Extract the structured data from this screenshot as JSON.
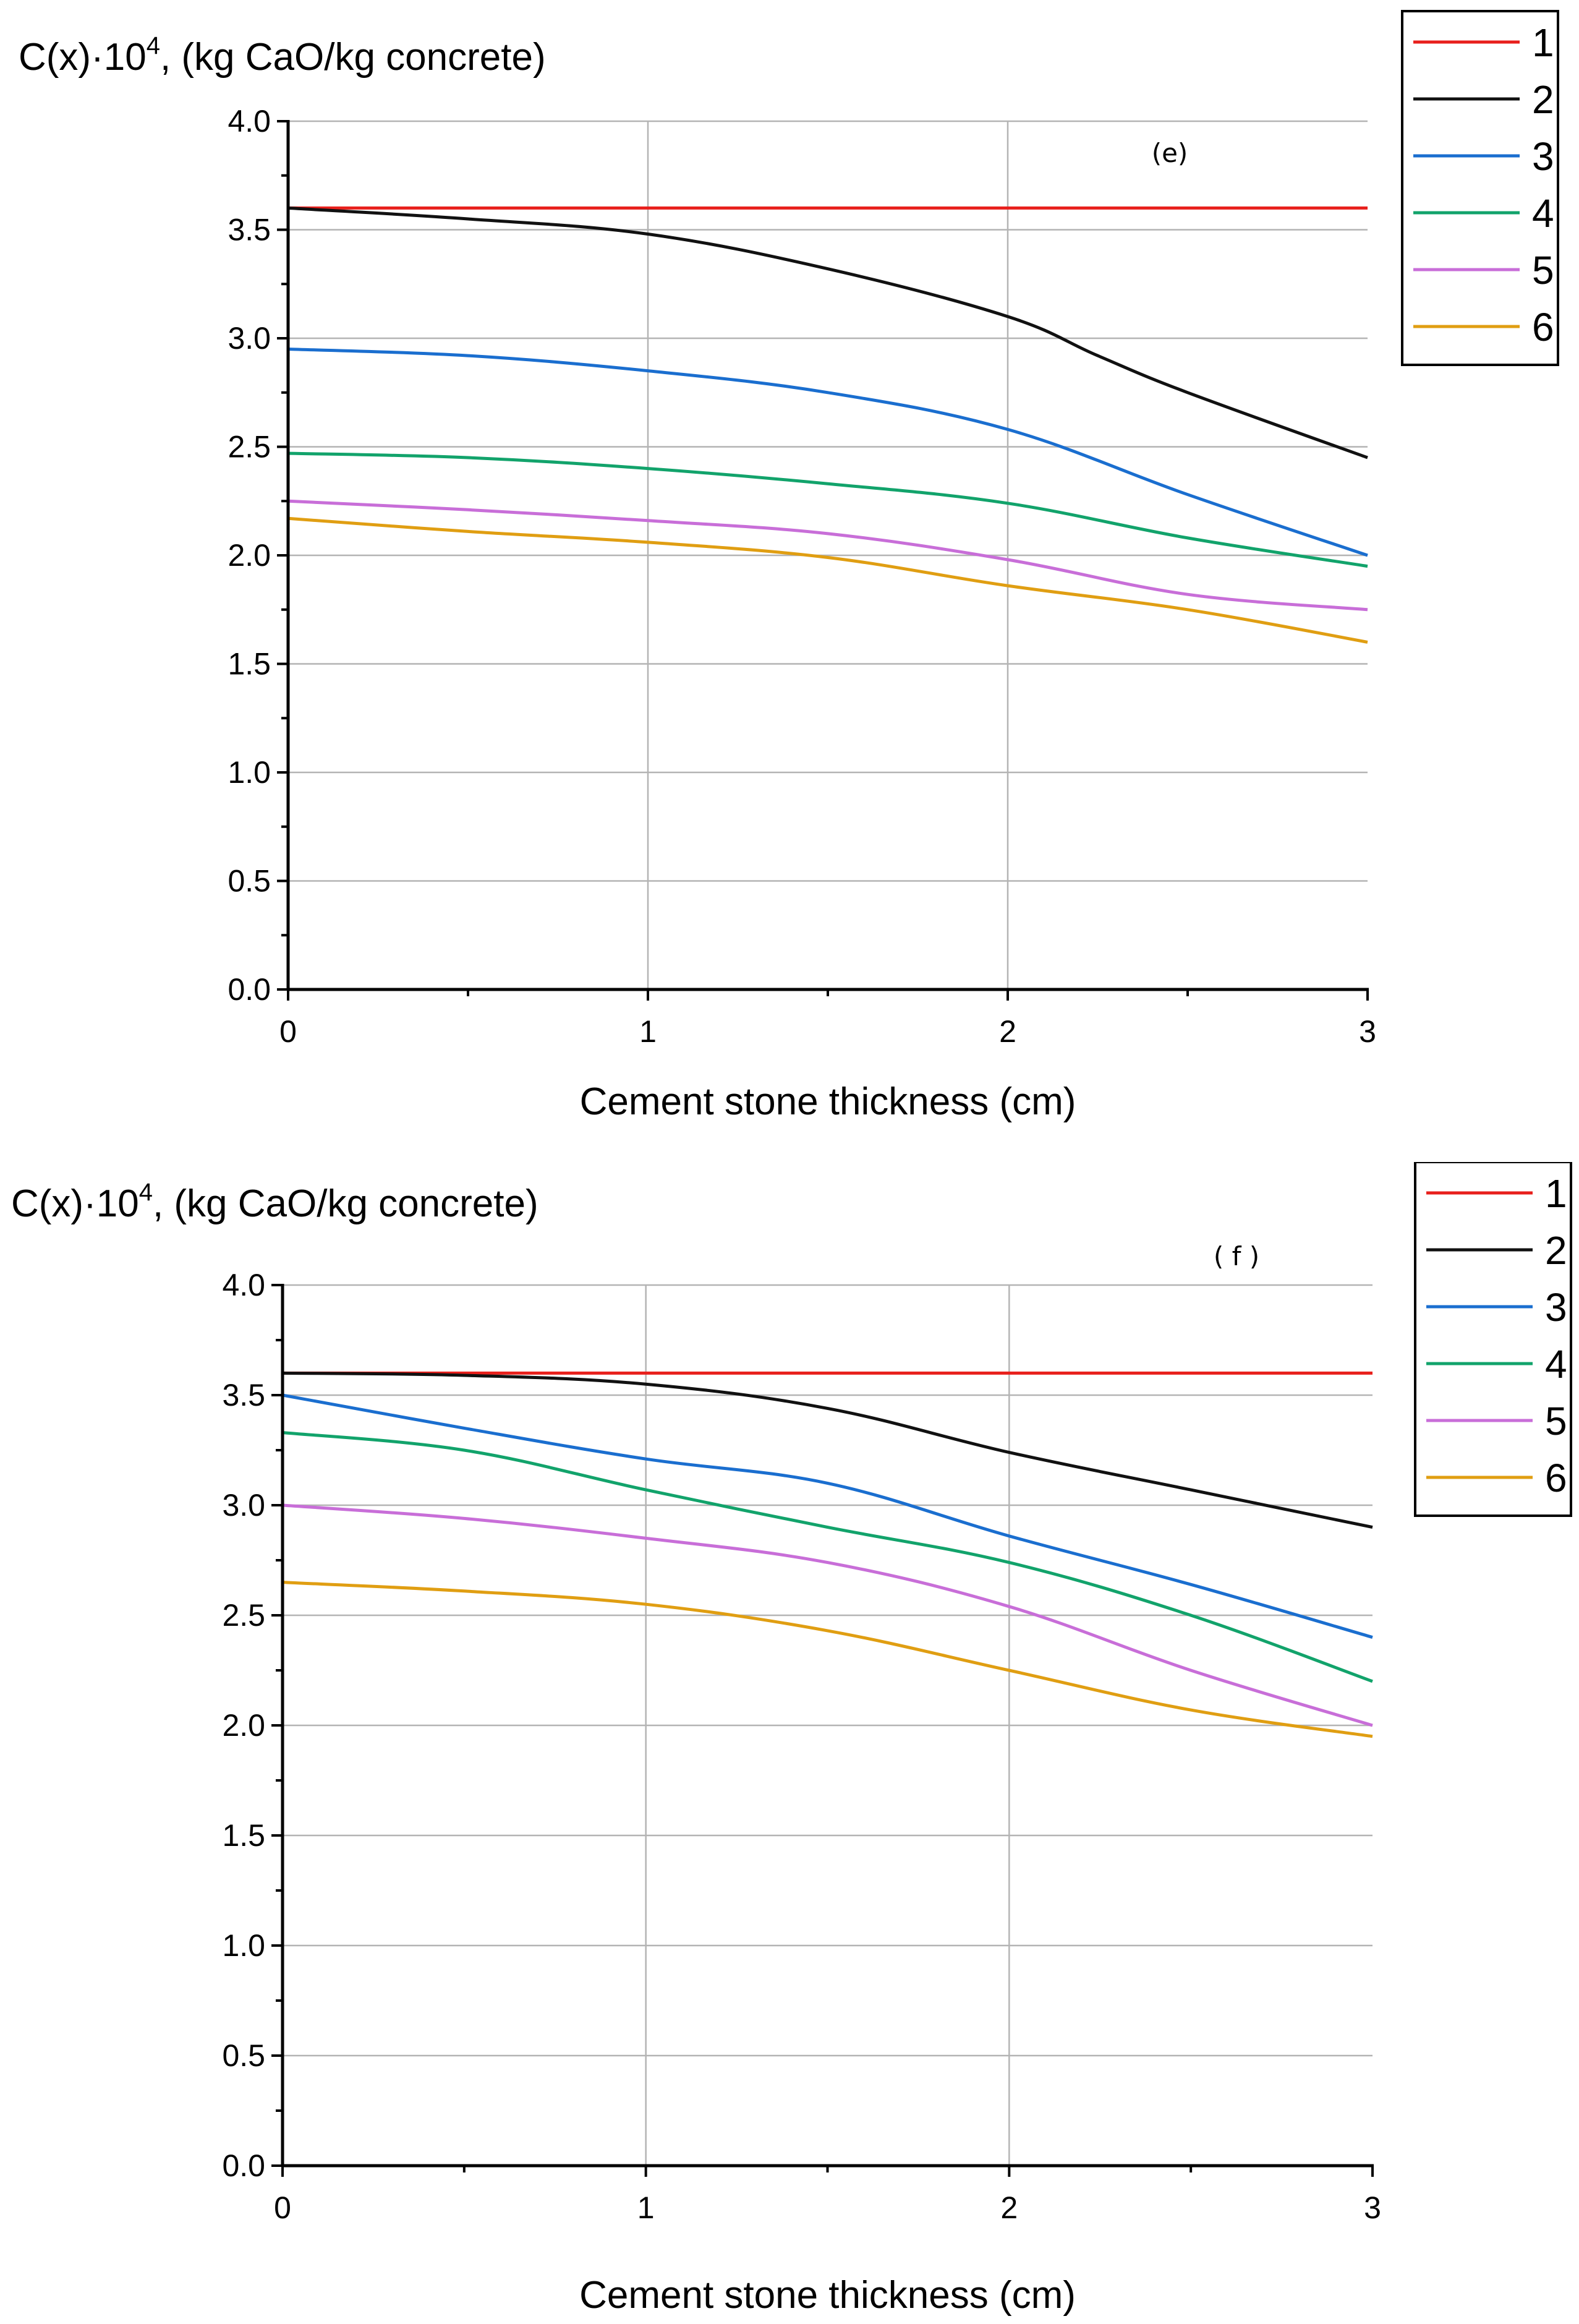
{
  "chart_data": [
    {
      "type": "line",
      "panel_label": "(e)",
      "ylabel": "C(x)·10",
      "ylabel_exp": "4",
      "ylabel_suffix": ", (kg CaO/kg concrete)",
      "xlabel": "Cement stone thickness (cm)",
      "xlim": [
        0,
        3
      ],
      "ylim": [
        0,
        4.0
      ],
      "xticks": [
        "0",
        "1",
        "2",
        "3"
      ],
      "yticks": [
        "0.0",
        "0.5",
        "1.0",
        "1.5",
        "2.0",
        "2.5",
        "3.0",
        "3.5",
        "4.0"
      ],
      "grid": true,
      "legend_position": "top-right",
      "series": [
        {
          "name": "1",
          "color": "#e8201c",
          "x": [
            0,
            0.5,
            1,
            1.5,
            2,
            2.5,
            3
          ],
          "y": [
            3.6,
            3.6,
            3.6,
            3.6,
            3.6,
            3.6,
            3.6
          ]
        },
        {
          "name": "2",
          "color": "#111111",
          "x": [
            0,
            0.5,
            1,
            1.5,
            2,
            2.25,
            2.5,
            3
          ],
          "y": [
            3.6,
            3.55,
            3.48,
            3.32,
            3.1,
            2.92,
            2.75,
            2.45
          ]
        },
        {
          "name": "3",
          "color": "#1a6ecf",
          "x": [
            0,
            0.5,
            1,
            1.5,
            2,
            2.5,
            3
          ],
          "y": [
            2.95,
            2.92,
            2.85,
            2.75,
            2.58,
            2.28,
            2.0
          ]
        },
        {
          "name": "4",
          "color": "#12a36b",
          "x": [
            0,
            0.5,
            1,
            1.5,
            2,
            2.5,
            3
          ],
          "y": [
            2.47,
            2.45,
            2.4,
            2.33,
            2.24,
            2.08,
            1.95
          ]
        },
        {
          "name": "5",
          "color": "#c86ed8",
          "x": [
            0,
            0.5,
            1,
            1.5,
            2,
            2.5,
            3
          ],
          "y": [
            2.25,
            2.21,
            2.16,
            2.1,
            1.98,
            1.82,
            1.75
          ]
        },
        {
          "name": "6",
          "color": "#e09e12",
          "x": [
            0,
            0.5,
            1,
            1.5,
            2,
            2.5,
            3
          ],
          "y": [
            2.17,
            2.11,
            2.06,
            1.99,
            1.86,
            1.75,
            1.6
          ]
        }
      ]
    },
    {
      "type": "line",
      "panel_label": "( f )",
      "ylabel": "C(x)·10",
      "ylabel_exp": "4",
      "ylabel_suffix": ", (kg CaO/kg concrete)",
      "xlabel": "Cement stone thickness (cm)",
      "xlim": [
        0,
        3
      ],
      "ylim": [
        0,
        4.0
      ],
      "xticks": [
        "0",
        "1",
        "2",
        "3"
      ],
      "yticks": [
        "0.0",
        "0.5",
        "1.0",
        "1.5",
        "2.0",
        "2.5",
        "3.0",
        "3.5",
        "4.0"
      ],
      "grid": true,
      "legend_position": "top-right",
      "series": [
        {
          "name": "1",
          "color": "#e8201c",
          "x": [
            0,
            0.5,
            1,
            1.5,
            2,
            2.5,
            3
          ],
          "y": [
            3.6,
            3.6,
            3.6,
            3.6,
            3.6,
            3.6,
            3.6
          ]
        },
        {
          "name": "2",
          "color": "#111111",
          "x": [
            0,
            0.5,
            1,
            1.5,
            2,
            2.5,
            3
          ],
          "y": [
            3.6,
            3.59,
            3.55,
            3.44,
            3.24,
            3.07,
            2.9
          ]
        },
        {
          "name": "3",
          "color": "#1a6ecf",
          "x": [
            0,
            0.5,
            1,
            1.5,
            2,
            2.5,
            3
          ],
          "y": [
            3.5,
            3.35,
            3.21,
            3.1,
            2.86,
            2.64,
            2.4
          ]
        },
        {
          "name": "4",
          "color": "#12a36b",
          "x": [
            0,
            0.5,
            1,
            1.5,
            2,
            2.5,
            3
          ],
          "y": [
            3.33,
            3.25,
            3.07,
            2.9,
            2.74,
            2.5,
            2.2
          ]
        },
        {
          "name": "5",
          "color": "#c86ed8",
          "x": [
            0,
            0.5,
            1,
            1.5,
            2,
            2.5,
            3
          ],
          "y": [
            3.0,
            2.94,
            2.85,
            2.74,
            2.54,
            2.25,
            2.0
          ]
        },
        {
          "name": "6",
          "color": "#e09e12",
          "x": [
            0,
            0.5,
            1,
            1.5,
            2,
            2.5,
            3
          ],
          "y": [
            2.65,
            2.61,
            2.55,
            2.43,
            2.25,
            2.07,
            1.95
          ]
        }
      ]
    }
  ]
}
